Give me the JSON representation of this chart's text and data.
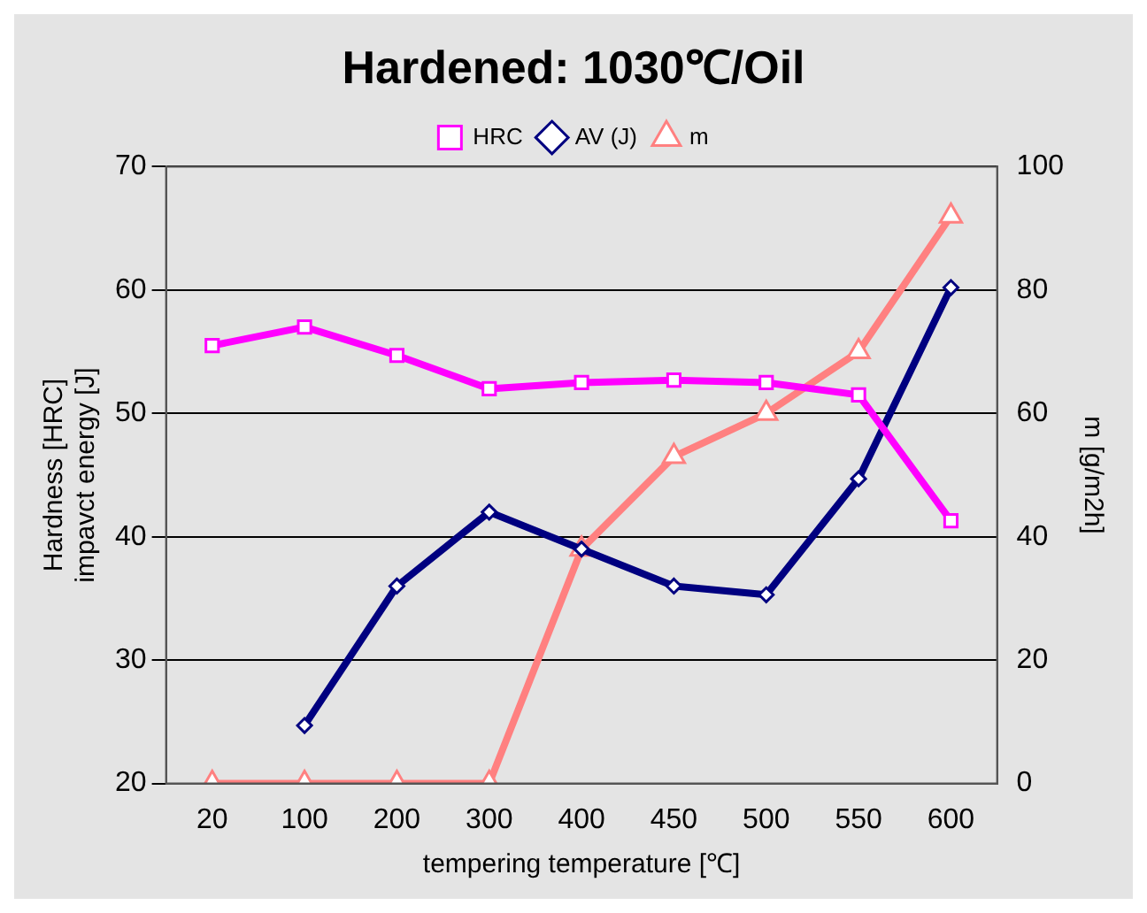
{
  "chart_data": {
    "type": "line",
    "title": "Hardened: 1030℃/Oil",
    "xlabel": "tempering temperature [℃]",
    "ylabel": "Hardness [HRC]\nimpavct energy [J]",
    "y2label": "m [g/m2h]",
    "categories": [
      "20",
      "100",
      "200",
      "300",
      "400",
      "450",
      "500",
      "550",
      "600"
    ],
    "series": [
      {
        "name": "HRC",
        "color": "#ff00ff",
        "marker": "square",
        "values": [
          55.5,
          57,
          54.7,
          52,
          52.5,
          52.7,
          52.5,
          51.5,
          41.3
        ]
      },
      {
        "name": "AV (J)",
        "color": "#000080",
        "marker": "diamond",
        "values": [
          null,
          24.7,
          36,
          42,
          39,
          36,
          35.3,
          44.7,
          60.2
        ]
      },
      {
        "name": "m",
        "color": "#ff8080",
        "marker": "triangle",
        "axis": "y2",
        "values": [
          0,
          0,
          0,
          0,
          38,
          53,
          60,
          70,
          92
        ]
      }
    ],
    "ylim": [
      20,
      70
    ],
    "yticks": [
      20,
      30,
      40,
      50,
      60,
      70
    ],
    "y2lim": [
      0,
      100
    ],
    "y2ticks": [
      0,
      20,
      40,
      60,
      80,
      100
    ],
    "grid": "y",
    "legend": "top"
  }
}
